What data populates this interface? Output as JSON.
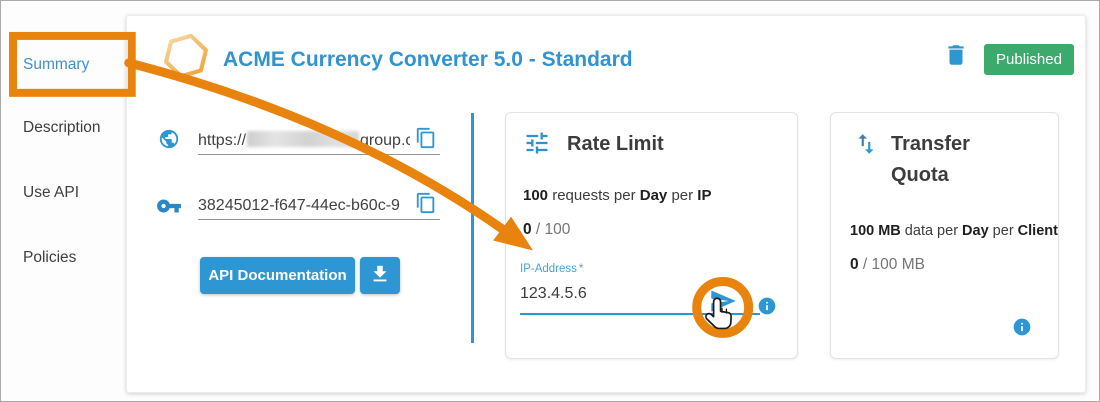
{
  "sidebar": {
    "items": [
      {
        "label": "Summary",
        "active": true
      },
      {
        "label": "Description",
        "active": false
      },
      {
        "label": "Use API",
        "active": false
      },
      {
        "label": "Policies",
        "active": false
      }
    ]
  },
  "header": {
    "title": "ACME Currency Converter 5.0 - Standard",
    "status_badge": "Published"
  },
  "api_access": {
    "endpoint_url": {
      "prefix": "https://",
      "redacted_middle": true,
      "suffix": "group.c"
    },
    "api_key": "38245012-f647-44ec-b60c-9",
    "doc_button_label": "API Documentation"
  },
  "rate_limit": {
    "title": "Rate Limit",
    "description_segments": [
      {
        "t": "100",
        "b": 1
      },
      {
        "t": " requests per "
      },
      {
        "t": "Day",
        "b": 1
      },
      {
        "t": " per "
      },
      {
        "t": "IP",
        "b": 1
      }
    ],
    "usage_segments": [
      {
        "t": "0",
        "b": 1
      },
      {
        "t": " / 100",
        "muted": 1
      }
    ],
    "field": {
      "label": "IP-Address",
      "required_marker": "*",
      "value": "123.4.5.6"
    }
  },
  "transfer_quota": {
    "title": "Transfer Quota",
    "description_segments": [
      {
        "t": "100 MB",
        "b": 1
      },
      {
        "t": " data per "
      },
      {
        "t": "Day",
        "b": 1
      },
      {
        "t": " per "
      },
      {
        "t": "Client",
        "b": 1
      }
    ],
    "usage_segments": [
      {
        "t": "0",
        "b": 1
      },
      {
        "t": " / 100 MB",
        "muted": 1
      }
    ]
  },
  "annotations": {
    "highlighted_nav_item": "Summary",
    "circled_control": "send-button",
    "color": "#E8830E"
  },
  "colors": {
    "accent_blue": "#2E96D2",
    "title_blue": "#3193D0",
    "published_green": "#3BAA6C",
    "annotation_orange": "#E8830E"
  }
}
